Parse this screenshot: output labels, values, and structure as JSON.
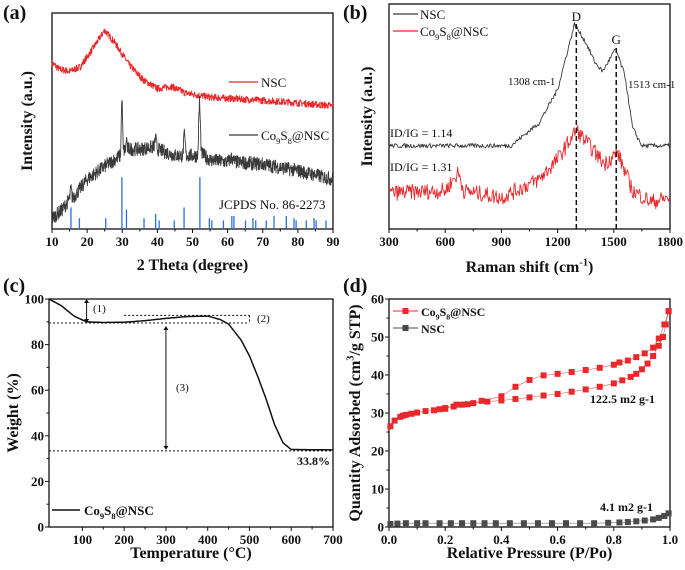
{
  "chart_data": [
    {
      "panel": "(a)",
      "type": "line",
      "xlabel": "2 Theta (degree)",
      "ylabel": "Intensity (a.u.)",
      "xlim": [
        10,
        90
      ],
      "ylim": [
        0,
        100
      ],
      "xticks": [
        10,
        20,
        30,
        40,
        50,
        60,
        70,
        80,
        90
      ],
      "series": [
        {
          "name": "NSC",
          "color": "#e8282b",
          "points": [
            [
              10,
              77
            ],
            [
              12,
              74
            ],
            [
              15,
              73
            ],
            [
              18,
              75
            ],
            [
              21,
              82
            ],
            [
              25,
              92
            ],
            [
              28,
              86
            ],
            [
              32,
              76
            ],
            [
              36,
              69
            ],
            [
              40,
              65
            ],
            [
              44,
              66
            ],
            [
              48,
              63
            ],
            [
              55,
              61
            ],
            [
              65,
              60
            ],
            [
              75,
              59
            ],
            [
              90,
              57
            ]
          ]
        },
        {
          "name": "Co9S8@NSC",
          "color": "#3a3a3a",
          "points": [
            [
              10,
              5
            ],
            [
              13,
              9
            ],
            [
              15,
              14
            ],
            [
              15.4,
              19
            ],
            [
              15.8,
              14
            ],
            [
              20,
              23
            ],
            [
              25,
              29
            ],
            [
              29.5,
              34
            ],
            [
              29.9,
              62
            ],
            [
              30.3,
              36
            ],
            [
              31,
              37
            ],
            [
              31.2,
              43
            ],
            [
              31.5,
              37
            ],
            [
              35,
              37
            ],
            [
              39,
              38
            ],
            [
              39.5,
              42
            ],
            [
              40,
              37
            ],
            [
              45,
              34
            ],
            [
              47.2,
              34
            ],
            [
              47.7,
              44
            ],
            [
              48.2,
              34
            ],
            [
              51.5,
              34
            ],
            [
              52,
              60
            ],
            [
              52.5,
              35
            ],
            [
              55,
              32
            ],
            [
              60,
              31
            ],
            [
              61.2,
              33
            ],
            [
              62,
              31
            ],
            [
              70,
              30
            ],
            [
              80,
              27
            ],
            [
              90,
              23
            ]
          ]
        }
      ],
      "reference": {
        "name": "JCPDS No. 86-2273",
        "color": "#2f6fd6",
        "sticks": [
          [
            15.4,
            10
          ],
          [
            17.8,
            5
          ],
          [
            25.3,
            5
          ],
          [
            29.9,
            24
          ],
          [
            31.2,
            9
          ],
          [
            36.2,
            5
          ],
          [
            39.5,
            7
          ],
          [
            40.5,
            4
          ],
          [
            44.8,
            4
          ],
          [
            47.6,
            10
          ],
          [
            52.1,
            24
          ],
          [
            54.8,
            5
          ],
          [
            55.5,
            4
          ],
          [
            58.8,
            4
          ],
          [
            61.2,
            6
          ],
          [
            61.8,
            6
          ],
          [
            65.1,
            4
          ],
          [
            67.2,
            5
          ],
          [
            68,
            4
          ],
          [
            71,
            4
          ],
          [
            73.2,
            6
          ],
          [
            76.7,
            6
          ],
          [
            78.9,
            5
          ],
          [
            79.5,
            4
          ],
          [
            82.4,
            4
          ],
          [
            84.6,
            5
          ],
          [
            85.2,
            4
          ],
          [
            88,
            4
          ]
        ]
      }
    },
    {
      "panel": "(b)",
      "type": "line",
      "xlabel": "Raman shift (cm-1)",
      "ylabel": "Intensity (a.u.)",
      "xlim": [
        300,
        1800
      ],
      "ylim": [
        0,
        100
      ],
      "xticks": [
        300,
        600,
        900,
        1200,
        1500,
        1800
      ],
      "series": [
        {
          "name": "NSC",
          "color": "#3a3a3a",
          "points": [
            [
              300,
              37
            ],
            [
              950,
              37
            ],
            [
              1100,
              47
            ],
            [
              1200,
              62
            ],
            [
              1290,
              91
            ],
            [
              1350,
              83
            ],
            [
              1400,
              74
            ],
            [
              1440,
              70
            ],
            [
              1510,
              80
            ],
            [
              1560,
              68
            ],
            [
              1600,
              45
            ],
            [
              1650,
              37
            ],
            [
              1800,
              37
            ]
          ]
        },
        {
          "name": "Co9S8@NSC",
          "color": "#e8282b",
          "points": [
            [
              300,
              16
            ],
            [
              600,
              17
            ],
            [
              670,
              25
            ],
            [
              700,
              17
            ],
            [
              900,
              14
            ],
            [
              1100,
              22
            ],
            [
              1200,
              31
            ],
            [
              1300,
              44
            ],
            [
              1400,
              34
            ],
            [
              1450,
              29
            ],
            [
              1520,
              34
            ],
            [
              1600,
              17
            ],
            [
              1700,
              12
            ],
            [
              1800,
              14
            ]
          ]
        }
      ],
      "annotations": {
        "d_band": {
          "label": "D",
          "position": 1300,
          "shift_label": "1308 cm-1"
        },
        "g_band": {
          "label": "G",
          "position": 1513,
          "shift_label": "1513 cm-1"
        },
        "ratio_nsc": "ID/IG = 1.14",
        "ratio_co9s8": "ID/IG = 1.31"
      }
    },
    {
      "panel": "(c)",
      "type": "line",
      "xlabel": "Temperature (°C)",
      "ylabel": "Weight (%)",
      "xlim": [
        20,
        700
      ],
      "ylim": [
        0,
        100
      ],
      "xticks": [
        100,
        200,
        300,
        400,
        500,
        600,
        700
      ],
      "yticks": [
        0,
        20,
        40,
        60,
        80,
        100
      ],
      "series": [
        {
          "name": "Co9S8@NSC",
          "color": "#111111",
          "points": [
            [
              20,
              100
            ],
            [
              50,
              97
            ],
            [
              80,
              92.5
            ],
            [
              110,
              90
            ],
            [
              150,
              89.7
            ],
            [
              200,
              89.8
            ],
            [
              250,
              90.5
            ],
            [
              300,
              91.5
            ],
            [
              350,
              92.3
            ],
            [
              400,
              92.5
            ],
            [
              430,
              91
            ],
            [
              450,
              89
            ],
            [
              480,
              82
            ],
            [
              500,
              75
            ],
            [
              520,
              66
            ],
            [
              540,
              56
            ],
            [
              560,
              45
            ],
            [
              580,
              37
            ],
            [
              600,
              34
            ],
            [
              700,
              33.8
            ]
          ]
        }
      ],
      "annotations": {
        "step1": "(1)",
        "step2": "(2)",
        "step3": "(3)",
        "residue": "33.8%",
        "levels": [
          89.5,
          92.8,
          33.8
        ]
      }
    },
    {
      "panel": "(d)",
      "type": "scatter",
      "xlabel": "Relative Pressure (P/Po)",
      "ylabel": "Quantity Adsorbed (cm3/g STP)",
      "xlim": [
        0,
        1
      ],
      "ylim": [
        0,
        60
      ],
      "xticks": [
        0.0,
        0.2,
        0.4,
        0.6,
        0.8,
        1.0
      ],
      "yticks": [
        0,
        10,
        20,
        30,
        40,
        50,
        60
      ],
      "series": [
        {
          "name": "Co9S8@NSC",
          "color": "#e8282b",
          "adsorption": [
            [
              0.005,
              26.5
            ],
            [
              0.02,
              28
            ],
            [
              0.04,
              29
            ],
            [
              0.05,
              29.3
            ],
            [
              0.06,
              29.5
            ],
            [
              0.08,
              29.8
            ],
            [
              0.1,
              30.1
            ],
            [
              0.13,
              30.5
            ],
            [
              0.16,
              30.7
            ],
            [
              0.2,
              31.1
            ],
            [
              0.23,
              31.7
            ],
            [
              0.26,
              32.2
            ],
            [
              0.3,
              32.6
            ],
            [
              0.35,
              33
            ],
            [
              0.4,
              33.3
            ],
            [
              0.45,
              33.7
            ],
            [
              0.5,
              34.1
            ],
            [
              0.55,
              34.6
            ],
            [
              0.6,
              35
            ],
            [
              0.65,
              35.6
            ],
            [
              0.7,
              36.2
            ],
            [
              0.75,
              36.9
            ],
            [
              0.8,
              37.8
            ],
            [
              0.83,
              38.6
            ],
            [
              0.86,
              39.5
            ],
            [
              0.88,
              40.3
            ],
            [
              0.9,
              41.5
            ],
            [
              0.92,
              43
            ],
            [
              0.94,
              45
            ],
            [
              0.96,
              47.7
            ],
            [
              0.975,
              50
            ],
            [
              0.985,
              53.3
            ],
            [
              0.995,
              56.8
            ]
          ],
          "desorption": [
            [
              0.995,
              56.8
            ],
            [
              0.98,
              53.3
            ],
            [
              0.96,
              49.6
            ],
            [
              0.94,
              47.2
            ],
            [
              0.91,
              45.7
            ],
            [
              0.88,
              44.7
            ],
            [
              0.85,
              43.8
            ],
            [
              0.82,
              43.3
            ],
            [
              0.8,
              42.7
            ],
            [
              0.75,
              41.9
            ],
            [
              0.7,
              41.3
            ],
            [
              0.65,
              40.8
            ],
            [
              0.6,
              40.3
            ],
            [
              0.55,
              39.9
            ],
            [
              0.5,
              38.7
            ],
            [
              0.45,
              36.9
            ],
            [
              0.4,
              34.4
            ],
            [
              0.33,
              33.2
            ],
            [
              0.28,
              32.3
            ],
            [
              0.24,
              32.2
            ],
            [
              0.2,
              31.3
            ],
            [
              0.18,
              31
            ]
          ],
          "surface_area": "122.5 m2 g-1"
        },
        {
          "name": "NSC",
          "color": "#4a4a4a",
          "adsorption": [
            [
              0.005,
              0.8
            ],
            [
              0.03,
              0.9
            ],
            [
              0.06,
              1
            ],
            [
              0.1,
              1
            ],
            [
              0.13,
              1
            ],
            [
              0.18,
              1
            ],
            [
              0.22,
              1
            ],
            [
              0.26,
              1
            ],
            [
              0.3,
              1
            ],
            [
              0.34,
              1
            ],
            [
              0.38,
              1
            ],
            [
              0.43,
              1
            ],
            [
              0.48,
              1
            ],
            [
              0.53,
              1
            ],
            [
              0.58,
              1
            ],
            [
              0.63,
              1
            ],
            [
              0.68,
              1
            ],
            [
              0.73,
              1
            ],
            [
              0.78,
              1.1
            ],
            [
              0.82,
              1.2
            ],
            [
              0.85,
              1.3
            ],
            [
              0.88,
              1.5
            ],
            [
              0.91,
              1.7
            ],
            [
              0.94,
              2
            ],
            [
              0.96,
              2.4
            ],
            [
              0.98,
              2.9
            ],
            [
              0.995,
              3.6
            ]
          ],
          "desorption": [],
          "surface_area": "4.1 m2 g-1"
        }
      ]
    }
  ]
}
